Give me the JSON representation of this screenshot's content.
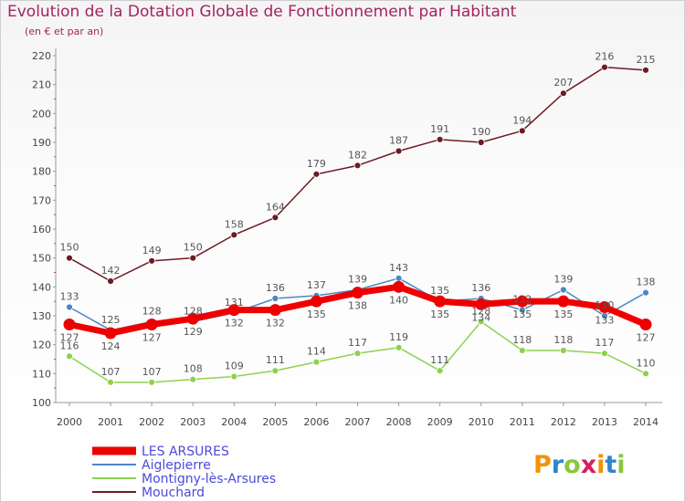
{
  "title": "Evolution de la Dotation Globale de Fonctionnement par Habitant",
  "subtitle": "(en € et par an)",
  "logo_text": "Proxiti",
  "chart_data": {
    "type": "line",
    "x": [
      "2000",
      "2001",
      "2002",
      "2003",
      "2004",
      "2005",
      "2006",
      "2007",
      "2008",
      "2009",
      "2010",
      "2011",
      "2012",
      "2013",
      "2014"
    ],
    "ylim": [
      100,
      220
    ],
    "yticks": [
      100,
      110,
      120,
      130,
      140,
      150,
      160,
      170,
      180,
      190,
      200,
      210,
      220
    ],
    "grid": false,
    "legend_position": "bottom-left",
    "series": [
      {
        "name": "LES ARSURES",
        "color": "#ee0000",
        "values": [
          127,
          124,
          127,
          129,
          132,
          132,
          135,
          138,
          140,
          135,
          134,
          135,
          135,
          133,
          127
        ]
      },
      {
        "name": "Aiglepierre",
        "color": "#4b88c4",
        "values": [
          133,
          125,
          128,
          128,
          131,
          136,
          137,
          139,
          143,
          135,
          136,
          132,
          139,
          130,
          138
        ]
      },
      {
        "name": "Montigny-lès-Arsures",
        "color": "#8fd14f",
        "values": [
          116,
          107,
          107,
          108,
          109,
          111,
          114,
          117,
          119,
          111,
          128,
          118,
          118,
          117,
          110
        ]
      },
      {
        "name": "Mouchard",
        "color": "#6e1a24",
        "values": [
          150,
          142,
          149,
          150,
          158,
          164,
          179,
          182,
          187,
          191,
          190,
          194,
          207,
          216,
          215
        ]
      }
    ]
  }
}
